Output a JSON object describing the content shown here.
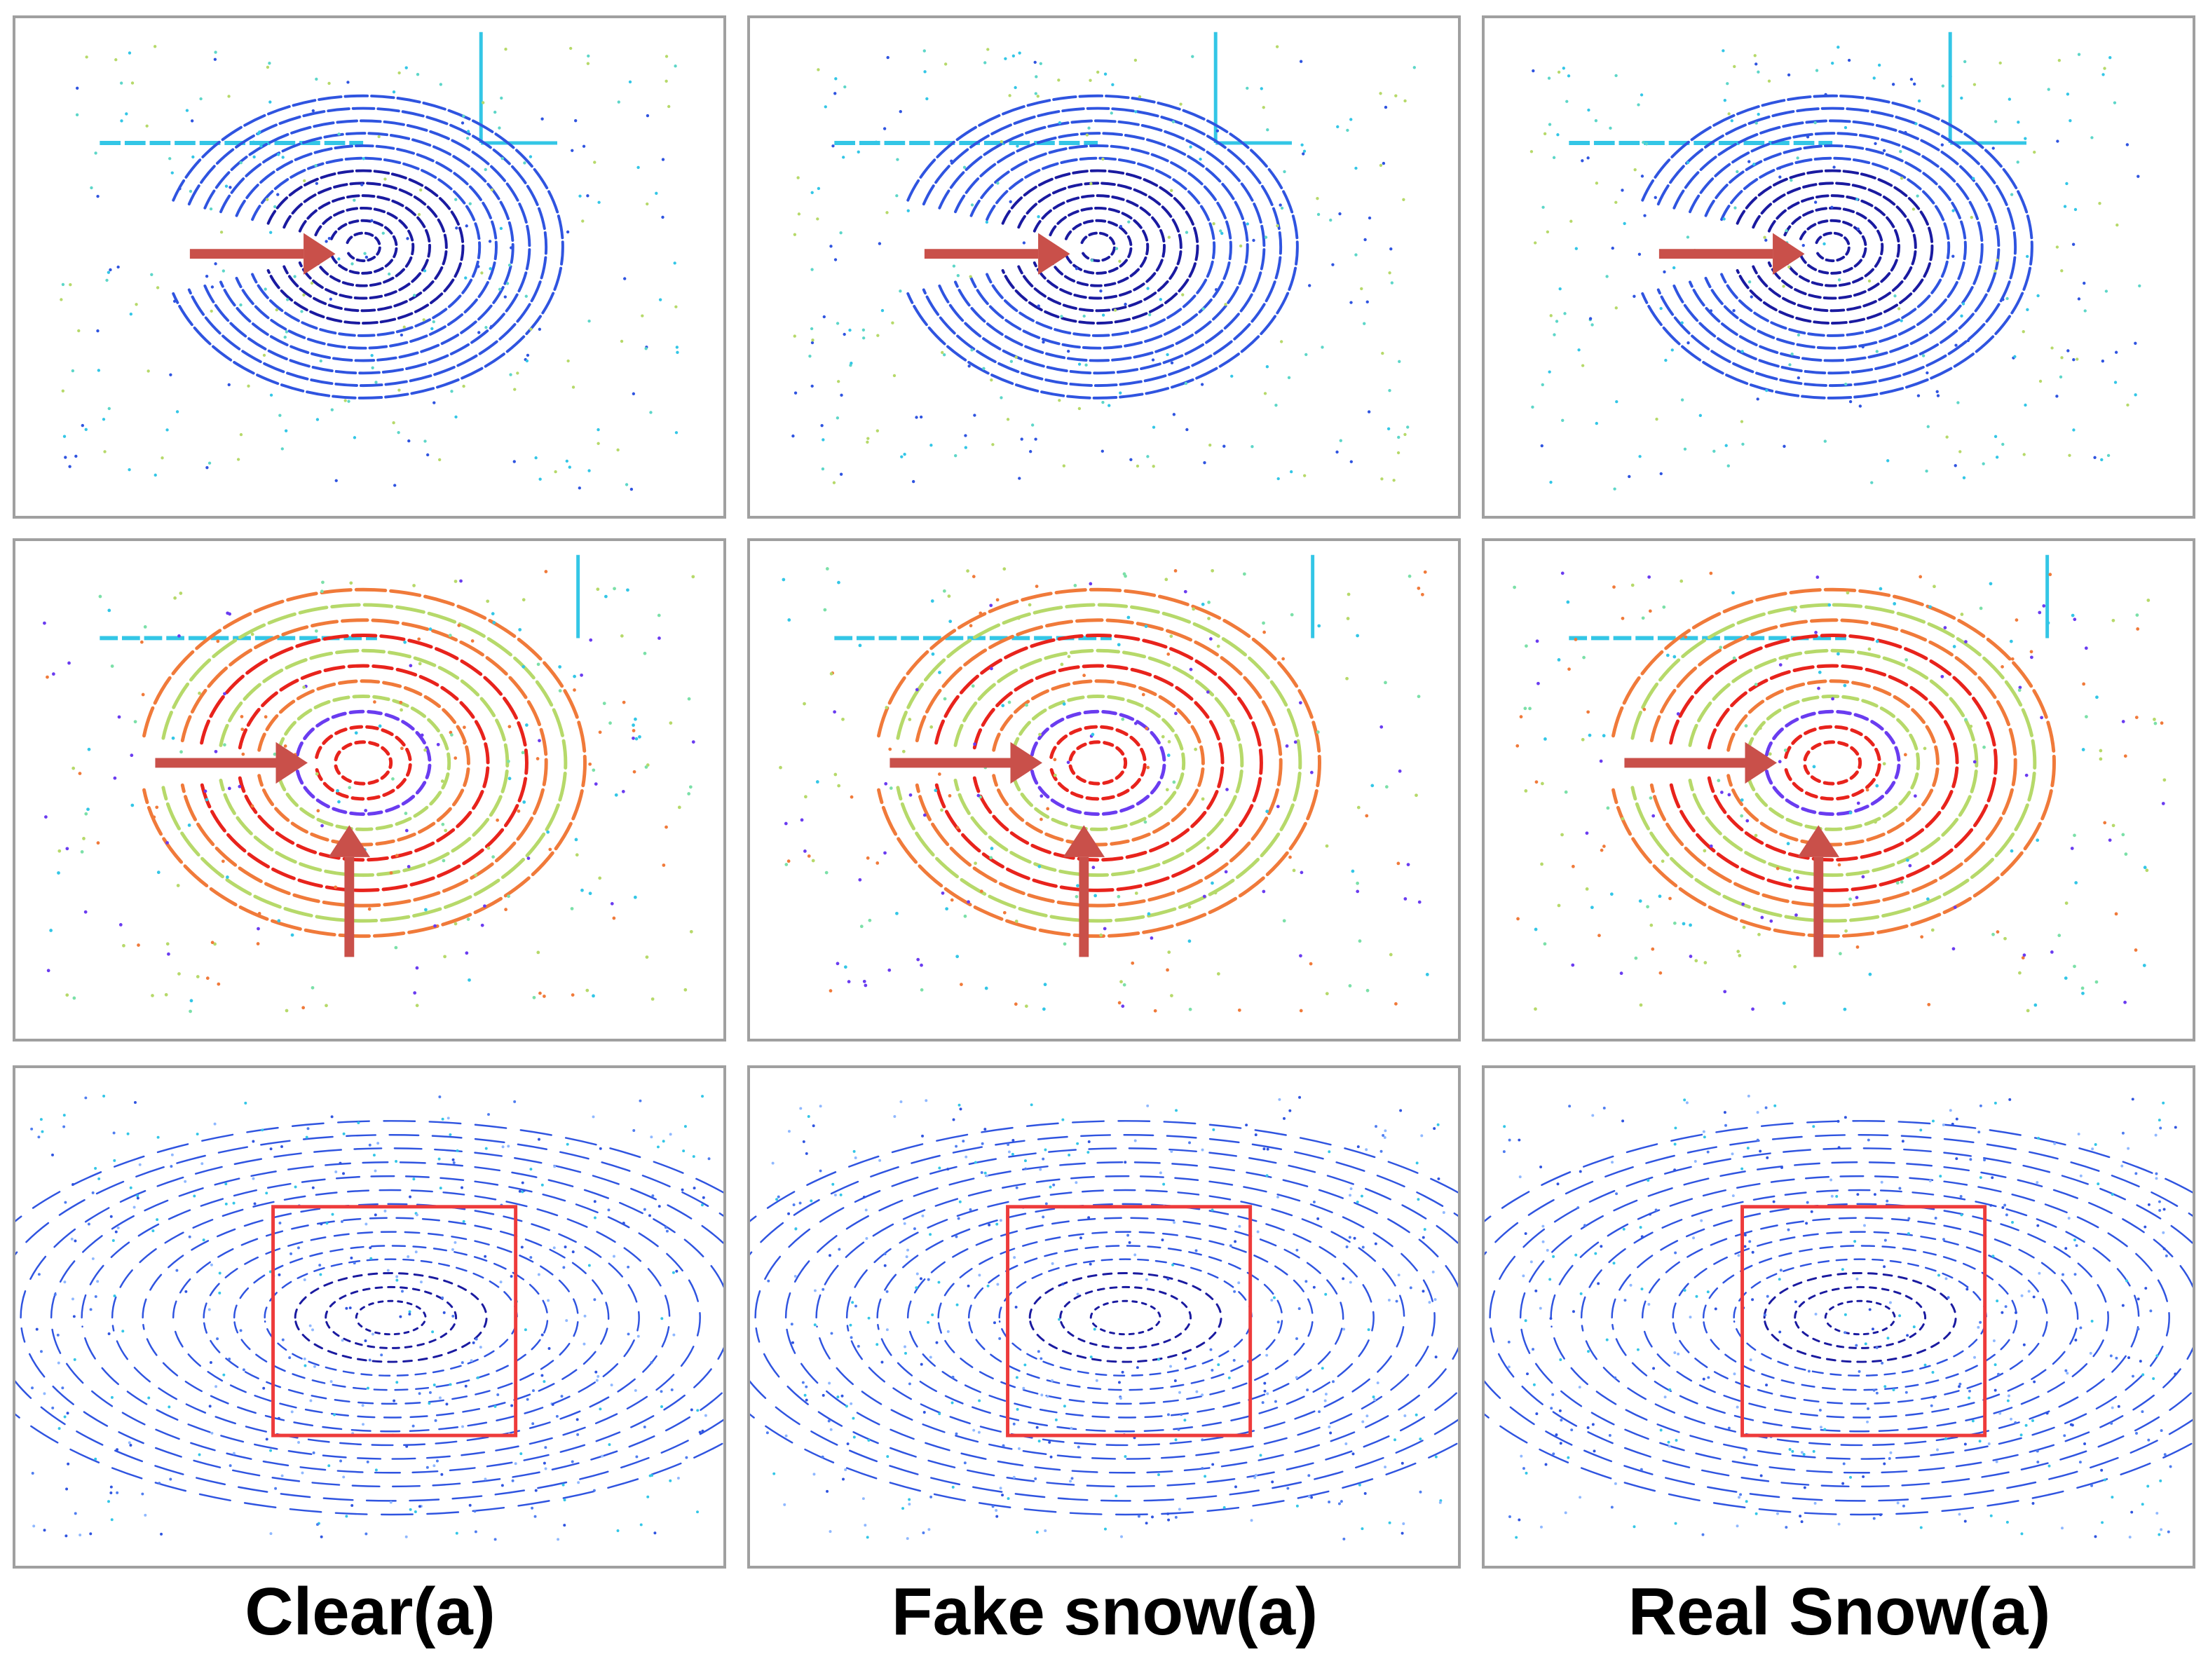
{
  "captions": {
    "col1": "Clear(a)",
    "col2": "Fake snow(a)",
    "col3": "Real Snow(a)"
  },
  "colors": {
    "arrow": "#c9504a",
    "box": "#ee3b3b",
    "ring_dark_blue": "#1a1aa0",
    "mid_blue": "#2f54e0",
    "cyan": "#33c6e6",
    "red": "#e8231c",
    "orange": "#f07a3a",
    "lime": "#b6d96a",
    "purple": "#6a3cf0"
  },
  "panels": [
    {
      "row": 1,
      "col": 1,
      "style": "bev-height",
      "markers": [
        "arrow-right"
      ]
    },
    {
      "row": 1,
      "col": 2,
      "style": "bev-height",
      "markers": [
        "arrow-right"
      ]
    },
    {
      "row": 1,
      "col": 3,
      "style": "bev-height",
      "markers": [
        "arrow-right"
      ]
    },
    {
      "row": 2,
      "col": 1,
      "style": "bev-intensity",
      "markers": [
        "arrow-right",
        "arrow-up"
      ]
    },
    {
      "row": 2,
      "col": 2,
      "style": "bev-intensity",
      "markers": [
        "arrow-right",
        "arrow-up"
      ]
    },
    {
      "row": 2,
      "col": 3,
      "style": "bev-intensity",
      "markers": [
        "arrow-right",
        "arrow-up"
      ]
    },
    {
      "row": 3,
      "col": 1,
      "style": "perspective",
      "markers": [
        "box"
      ]
    },
    {
      "row": 3,
      "col": 2,
      "style": "perspective",
      "markers": [
        "box"
      ]
    },
    {
      "row": 3,
      "col": 3,
      "style": "perspective",
      "markers": [
        "box"
      ]
    }
  ]
}
